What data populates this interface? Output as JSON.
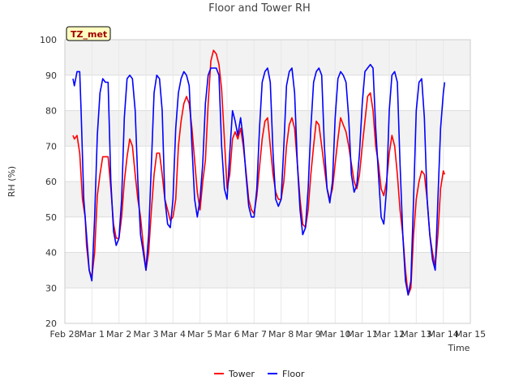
{
  "chart_data": {
    "type": "line",
    "title": "Floor and Tower RH",
    "xlabel": "Time",
    "ylabel": "RH (%)",
    "badge": "TZ_met",
    "x_tick_labels": [
      "Feb 28",
      "Mar 1",
      "Mar 2",
      "Mar 3",
      "Mar 4",
      "Mar 5",
      "Mar 6",
      "Mar 7",
      "Mar 8",
      "Mar 9",
      "Mar 10",
      "Mar 11",
      "Mar 12",
      "Mar 13",
      "Mar 14",
      "Mar 15"
    ],
    "xlim": [
      0,
      15
    ],
    "ylim": [
      20,
      100
    ],
    "y_ticks": [
      20,
      30,
      40,
      50,
      60,
      70,
      80,
      90,
      100
    ],
    "grid": true,
    "legend_position": "bottom-center",
    "series": [
      {
        "name": "Tower",
        "color": "#ff0000",
        "points": [
          [
            0.3,
            73
          ],
          [
            0.35,
            72
          ],
          [
            0.45,
            73
          ],
          [
            0.55,
            68
          ],
          [
            0.65,
            55
          ],
          [
            0.75,
            50
          ],
          [
            0.8,
            42
          ],
          [
            0.9,
            35
          ],
          [
            1.0,
            33
          ],
          [
            1.1,
            40
          ],
          [
            1.2,
            56
          ],
          [
            1.3,
            62
          ],
          [
            1.4,
            67
          ],
          [
            1.5,
            67
          ],
          [
            1.6,
            67
          ],
          [
            1.7,
            58
          ],
          [
            1.8,
            48
          ],
          [
            1.9,
            44
          ],
          [
            2.0,
            44
          ],
          [
            2.1,
            50
          ],
          [
            2.2,
            60
          ],
          [
            2.3,
            67
          ],
          [
            2.4,
            72
          ],
          [
            2.5,
            70
          ],
          [
            2.6,
            62
          ],
          [
            2.7,
            55
          ],
          [
            2.8,
            50
          ],
          [
            2.9,
            42
          ],
          [
            3.0,
            35
          ],
          [
            3.1,
            40
          ],
          [
            3.2,
            52
          ],
          [
            3.3,
            62
          ],
          [
            3.4,
            68
          ],
          [
            3.5,
            68
          ],
          [
            3.6,
            62
          ],
          [
            3.7,
            55
          ],
          [
            3.8,
            52
          ],
          [
            3.9,
            49
          ],
          [
            4.0,
            50
          ],
          [
            4.1,
            55
          ],
          [
            4.2,
            70
          ],
          [
            4.3,
            77
          ],
          [
            4.4,
            82
          ],
          [
            4.5,
            84
          ],
          [
            4.6,
            82
          ],
          [
            4.7,
            75
          ],
          [
            4.8,
            66
          ],
          [
            4.9,
            57
          ],
          [
            5.0,
            52
          ],
          [
            5.1,
            60
          ],
          [
            5.2,
            66
          ],
          [
            5.3,
            82
          ],
          [
            5.4,
            94
          ],
          [
            5.5,
            97
          ],
          [
            5.6,
            96
          ],
          [
            5.7,
            93
          ],
          [
            5.8,
            86
          ],
          [
            5.9,
            72
          ],
          [
            6.0,
            58
          ],
          [
            6.1,
            62
          ],
          [
            6.2,
            72
          ],
          [
            6.3,
            74
          ],
          [
            6.4,
            72
          ],
          [
            6.5,
            75
          ],
          [
            6.6,
            70
          ],
          [
            6.7,
            63
          ],
          [
            6.8,
            55
          ],
          [
            6.9,
            52
          ],
          [
            7.0,
            51
          ],
          [
            7.1,
            56
          ],
          [
            7.2,
            64
          ],
          [
            7.3,
            72
          ],
          [
            7.4,
            77
          ],
          [
            7.5,
            78
          ],
          [
            7.6,
            70
          ],
          [
            7.7,
            62
          ],
          [
            7.8,
            57
          ],
          [
            7.9,
            55
          ],
          [
            8.0,
            55
          ],
          [
            8.1,
            60
          ],
          [
            8.2,
            70
          ],
          [
            8.3,
            76
          ],
          [
            8.4,
            78
          ],
          [
            8.5,
            75
          ],
          [
            8.6,
            65
          ],
          [
            8.7,
            55
          ],
          [
            8.8,
            48
          ],
          [
            8.9,
            47
          ],
          [
            9.0,
            52
          ],
          [
            9.1,
            62
          ],
          [
            9.2,
            70
          ],
          [
            9.3,
            77
          ],
          [
            9.4,
            76
          ],
          [
            9.5,
            70
          ],
          [
            9.6,
            64
          ],
          [
            9.7,
            58
          ],
          [
            9.8,
            55
          ],
          [
            9.9,
            58
          ],
          [
            10.0,
            65
          ],
          [
            10.1,
            72
          ],
          [
            10.2,
            78
          ],
          [
            10.3,
            76
          ],
          [
            10.4,
            74
          ],
          [
            10.5,
            70
          ],
          [
            10.6,
            65
          ],
          [
            10.7,
            60
          ],
          [
            10.8,
            58
          ],
          [
            10.9,
            62
          ],
          [
            11.0,
            70
          ],
          [
            11.1,
            77
          ],
          [
            11.2,
            84
          ],
          [
            11.3,
            85
          ],
          [
            11.4,
            80
          ],
          [
            11.5,
            70
          ],
          [
            11.6,
            65
          ],
          [
            11.7,
            58
          ],
          [
            11.8,
            56
          ],
          [
            11.9,
            60
          ],
          [
            12.0,
            68
          ],
          [
            12.1,
            73
          ],
          [
            12.2,
            70
          ],
          [
            12.3,
            62
          ],
          [
            12.4,
            52
          ],
          [
            12.5,
            45
          ],
          [
            12.6,
            35
          ],
          [
            12.7,
            28
          ],
          [
            12.8,
            30
          ],
          [
            12.9,
            45
          ],
          [
            13.0,
            55
          ],
          [
            13.1,
            60
          ],
          [
            13.2,
            63
          ],
          [
            13.3,
            62
          ],
          [
            13.4,
            55
          ],
          [
            13.5,
            45
          ],
          [
            13.6,
            40
          ],
          [
            13.7,
            36
          ],
          [
            13.8,
            45
          ],
          [
            13.9,
            58
          ],
          [
            14.0,
            63
          ],
          [
            14.05,
            62
          ]
        ]
      },
      {
        "name": "Floor",
        "color": "#0000ff",
        "points": [
          [
            0.3,
            89
          ],
          [
            0.35,
            87
          ],
          [
            0.45,
            91
          ],
          [
            0.55,
            91
          ],
          [
            0.6,
            80
          ],
          [
            0.7,
            55
          ],
          [
            0.8,
            45
          ],
          [
            0.9,
            35
          ],
          [
            1.0,
            32
          ],
          [
            1.1,
            50
          ],
          [
            1.2,
            73
          ],
          [
            1.3,
            85
          ],
          [
            1.4,
            89
          ],
          [
            1.5,
            88
          ],
          [
            1.6,
            88
          ],
          [
            1.7,
            60
          ],
          [
            1.8,
            46
          ],
          [
            1.9,
            42
          ],
          [
            2.0,
            44
          ],
          [
            2.1,
            55
          ],
          [
            2.2,
            78
          ],
          [
            2.3,
            89
          ],
          [
            2.4,
            90
          ],
          [
            2.5,
            89
          ],
          [
            2.6,
            80
          ],
          [
            2.7,
            60
          ],
          [
            2.8,
            45
          ],
          [
            2.9,
            40
          ],
          [
            3.0,
            35
          ],
          [
            3.1,
            45
          ],
          [
            3.2,
            65
          ],
          [
            3.3,
            85
          ],
          [
            3.4,
            90
          ],
          [
            3.5,
            89
          ],
          [
            3.6,
            80
          ],
          [
            3.7,
            55
          ],
          [
            3.8,
            48
          ],
          [
            3.9,
            47
          ],
          [
            4.0,
            55
          ],
          [
            4.1,
            75
          ],
          [
            4.2,
            85
          ],
          [
            4.3,
            89
          ],
          [
            4.4,
            91
          ],
          [
            4.5,
            90
          ],
          [
            4.6,
            87
          ],
          [
            4.7,
            70
          ],
          [
            4.8,
            55
          ],
          [
            4.9,
            50
          ],
          [
            5.0,
            55
          ],
          [
            5.1,
            65
          ],
          [
            5.2,
            82
          ],
          [
            5.3,
            90
          ],
          [
            5.4,
            92
          ],
          [
            5.5,
            92
          ],
          [
            5.6,
            92
          ],
          [
            5.7,
            90
          ],
          [
            5.8,
            70
          ],
          [
            5.9,
            58
          ],
          [
            6.0,
            55
          ],
          [
            6.1,
            68
          ],
          [
            6.2,
            80
          ],
          [
            6.3,
            77
          ],
          [
            6.4,
            73
          ],
          [
            6.5,
            78
          ],
          [
            6.6,
            72
          ],
          [
            6.7,
            62
          ],
          [
            6.8,
            53
          ],
          [
            6.9,
            50
          ],
          [
            7.0,
            50
          ],
          [
            7.1,
            58
          ],
          [
            7.2,
            75
          ],
          [
            7.3,
            88
          ],
          [
            7.4,
            91
          ],
          [
            7.5,
            92
          ],
          [
            7.6,
            88
          ],
          [
            7.7,
            68
          ],
          [
            7.8,
            55
          ],
          [
            7.9,
            53
          ],
          [
            8.0,
            55
          ],
          [
            8.1,
            70
          ],
          [
            8.2,
            87
          ],
          [
            8.3,
            91
          ],
          [
            8.4,
            92
          ],
          [
            8.5,
            85
          ],
          [
            8.6,
            65
          ],
          [
            8.7,
            52
          ],
          [
            8.8,
            45
          ],
          [
            8.9,
            47
          ],
          [
            9.0,
            58
          ],
          [
            9.1,
            75
          ],
          [
            9.2,
            88
          ],
          [
            9.3,
            91
          ],
          [
            9.4,
            92
          ],
          [
            9.5,
            90
          ],
          [
            9.6,
            70
          ],
          [
            9.7,
            58
          ],
          [
            9.8,
            54
          ],
          [
            9.9,
            60
          ],
          [
            10.0,
            78
          ],
          [
            10.1,
            89
          ],
          [
            10.2,
            91
          ],
          [
            10.3,
            90
          ],
          [
            10.4,
            88
          ],
          [
            10.5,
            78
          ],
          [
            10.6,
            62
          ],
          [
            10.7,
            57
          ],
          [
            10.8,
            59
          ],
          [
            10.9,
            68
          ],
          [
            11.0,
            82
          ],
          [
            11.1,
            91
          ],
          [
            11.2,
            92
          ],
          [
            11.3,
            93
          ],
          [
            11.4,
            92
          ],
          [
            11.5,
            75
          ],
          [
            11.6,
            62
          ],
          [
            11.7,
            50
          ],
          [
            11.8,
            48
          ],
          [
            11.9,
            58
          ],
          [
            12.0,
            80
          ],
          [
            12.1,
            90
          ],
          [
            12.2,
            91
          ],
          [
            12.3,
            88
          ],
          [
            12.4,
            65
          ],
          [
            12.5,
            45
          ],
          [
            12.6,
            32
          ],
          [
            12.7,
            28
          ],
          [
            12.8,
            32
          ],
          [
            12.9,
            55
          ],
          [
            13.0,
            80
          ],
          [
            13.1,
            88
          ],
          [
            13.2,
            89
          ],
          [
            13.3,
            78
          ],
          [
            13.4,
            55
          ],
          [
            13.5,
            45
          ],
          [
            13.6,
            38
          ],
          [
            13.7,
            35
          ],
          [
            13.8,
            55
          ],
          [
            13.9,
            75
          ],
          [
            14.0,
            85
          ],
          [
            14.05,
            88
          ]
        ]
      }
    ]
  }
}
